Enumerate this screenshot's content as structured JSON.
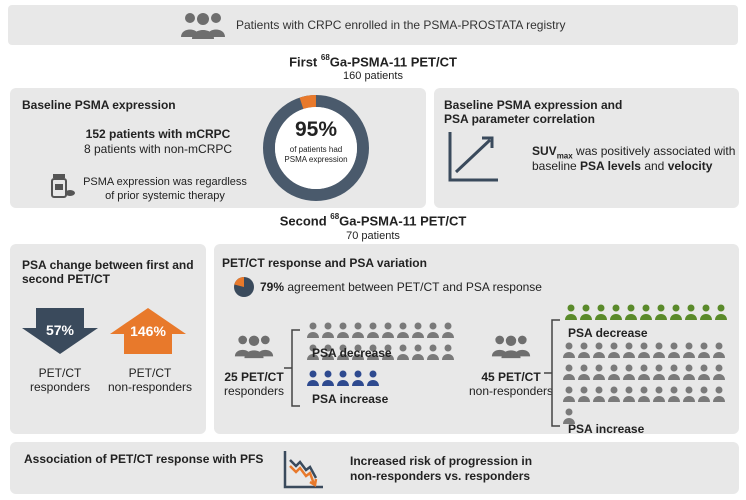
{
  "header": {
    "text": "Patients with CRPC enrolled in the PSMA-PROSTATA  registry",
    "icon": "people-group-icon"
  },
  "first_scan": {
    "title_prefix": "First ",
    "sup": "68",
    "title_suffix": "Ga-PSMA-11 PET/CT",
    "patients": "160 patients"
  },
  "baseline": {
    "title": "Baseline PSMA expression",
    "mcrpc": "152 patients with mCRPC",
    "non_mcrpc": "8 patients with non-mCRPC",
    "note_line1": "PSMA  expression was regardless",
    "note_line2": "of prior systemic therapy",
    "donut_value": "95%",
    "donut_fraction": 0.95,
    "donut_line1": "of patients had",
    "donut_line2": "PSMA  expression"
  },
  "correlation": {
    "title_line1": "Baseline PSMA expression and",
    "title_line2": "PSA parameter correlation",
    "suv": "SUV",
    "suv_sub": "max",
    "text_line1_rest": " was positively associated with",
    "text_line2_prefix": "baseline ",
    "psa_levels": "PSA levels",
    "and": " and ",
    "velocity": "velocity"
  },
  "second_scan": {
    "title_prefix": "Second ",
    "sup": "68",
    "title_suffix": "Ga-PSMA-11 PET/CT",
    "patients": "70 patients"
  },
  "psa_change": {
    "title_line1": "PSA change between first and",
    "title_line2": "second PET/CT",
    "responders_value": "57%",
    "nonresponders_value": "146%",
    "responders_label1": "PET/CT",
    "responders_label2": "responders",
    "nonresponders_label1": "PET/CT",
    "nonresponders_label2": "non-responders"
  },
  "response": {
    "title": "PET/CT  response and PSA variation",
    "agreement_value": "79%",
    "agreement_fraction": 0.79,
    "agreement_text": " agreement between PET/CT and PSA response",
    "responders": {
      "count_line1": "25 PET/CT",
      "count_line2": "responders",
      "decrease_label": "PSA decrease",
      "increase_label": "PSA increase",
      "decrease_n": 20,
      "increase_n": 5
    },
    "nonresponders": {
      "count_line1": "45 PET/CT",
      "count_line2": "non-responders",
      "decrease_label": "PSA decrease",
      "increase_label": "PSA increase",
      "decrease_n": 11,
      "increase_n": 34
    }
  },
  "pfs": {
    "title": "Association of PET/CT  response with PFS",
    "line1": "Increased risk of progression in",
    "line2": "non-responders vs. responders"
  },
  "colors": {
    "navy": "#3a4a5c",
    "orange": "#e8792b",
    "grey_person": "#7a7a7a",
    "green": "#5a8a2a",
    "blue": "#2e4a8f",
    "panel": "#e8e8e8"
  }
}
